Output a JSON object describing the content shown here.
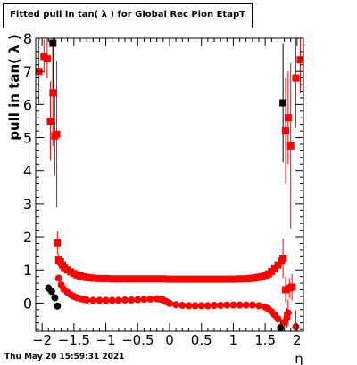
{
  "title": "Fitted pull in tan( λ ) for Global Rec Pion EtapT",
  "timestamp": "Thu May 20 15:59:31 2021",
  "chart_data": {
    "type": "scatter",
    "title": "Fitted pull in tan( λ ) for Global Rec Pion EtapT",
    "xlabel": "η",
    "ylabel": "pull in tan( λ )",
    "xlim": [
      -2.1,
      2.1
    ],
    "ylim": [
      -0.85,
      8.0
    ],
    "xticks": [
      "−2",
      "−1.5",
      "−1",
      "−0.5",
      "0",
      "0.5",
      "1",
      "1.5",
      "2"
    ],
    "yticks": [
      "0",
      "1",
      "2",
      "3",
      "4",
      "5",
      "6",
      "7",
      "8"
    ],
    "grid": false,
    "legend": "none",
    "colors": {
      "sigma": "#ff0000",
      "mean": "#000000",
      "frame": "#000000"
    },
    "series": [
      {
        "marker": "red-square",
        "color": "#ff0000",
        "points": [
          {
            "x": -2.05,
            "y": 7.0,
            "yerr": 1.0
          },
          {
            "x": -1.97,
            "y": 7.45,
            "yerr": 0.5
          },
          {
            "x": -1.92,
            "y": 7.38,
            "yerr": 0.6
          },
          {
            "x": -1.87,
            "y": 5.5,
            "yerr": 1.2
          },
          {
            "x": -1.83,
            "y": 6.35,
            "yerr": 1.6
          },
          {
            "x": -1.8,
            "y": 5.05,
            "yerr": 1.2
          },
          {
            "x": -1.77,
            "y": 5.1,
            "yerr": 2.2
          },
          {
            "x": -1.76,
            "y": 1.82,
            "yerr": 0.35
          },
          {
            "x": -1.74,
            "y": 1.3,
            "yerr": 0.2
          },
          {
            "x": -1.71,
            "y": 1.25,
            "yerr": 0.15
          },
          {
            "x": -1.68,
            "y": 1.15,
            "yerr": 0.12
          },
          {
            "x": -1.65,
            "y": 1.07,
            "yerr": 0.1
          },
          {
            "x": -1.6,
            "y": 1.0,
            "yerr": 0.08
          },
          {
            "x": -1.55,
            "y": 0.94,
            "yerr": 0.07
          },
          {
            "x": -1.5,
            "y": 0.89,
            "yerr": 0.06
          },
          {
            "x": -1.45,
            "y": 0.85,
            "yerr": 0.05
          },
          {
            "x": -1.4,
            "y": 0.82,
            "yerr": 0.05
          },
          {
            "x": -1.35,
            "y": 0.79,
            "yerr": 0.05
          },
          {
            "x": -1.3,
            "y": 0.77,
            "yerr": 0.05
          },
          {
            "x": -1.25,
            "y": 0.76,
            "yerr": 0.05
          },
          {
            "x": -1.2,
            "y": 0.75,
            "yerr": 0.05
          },
          {
            "x": -1.1,
            "y": 0.74,
            "yerr": 0.05
          },
          {
            "x": -1.0,
            "y": 0.74,
            "yerr": 0.05
          },
          {
            "x": -0.9,
            "y": 0.73,
            "yerr": 0.05
          },
          {
            "x": -0.8,
            "y": 0.73,
            "yerr": 0.05
          },
          {
            "x": -0.7,
            "y": 0.73,
            "yerr": 0.05
          },
          {
            "x": -0.6,
            "y": 0.73,
            "yerr": 0.05
          },
          {
            "x": -0.5,
            "y": 0.73,
            "yerr": 0.05
          },
          {
            "x": -0.4,
            "y": 0.73,
            "yerr": 0.05
          },
          {
            "x": -0.3,
            "y": 0.73,
            "yerr": 0.05
          },
          {
            "x": -0.2,
            "y": 0.73,
            "yerr": 0.05
          },
          {
            "x": -0.1,
            "y": 0.73,
            "yerr": 0.05
          },
          {
            "x": 0.0,
            "y": 0.72,
            "yerr": 0.05
          },
          {
            "x": 0.1,
            "y": 0.72,
            "yerr": 0.05
          },
          {
            "x": 0.2,
            "y": 0.72,
            "yerr": 0.05
          },
          {
            "x": 0.3,
            "y": 0.72,
            "yerr": 0.05
          },
          {
            "x": 0.4,
            "y": 0.72,
            "yerr": 0.05
          },
          {
            "x": 0.5,
            "y": 0.72,
            "yerr": 0.05
          },
          {
            "x": 0.6,
            "y": 0.72,
            "yerr": 0.05
          },
          {
            "x": 0.7,
            "y": 0.72,
            "yerr": 0.05
          },
          {
            "x": 0.8,
            "y": 0.72,
            "yerr": 0.05
          },
          {
            "x": 0.9,
            "y": 0.72,
            "yerr": 0.05
          },
          {
            "x": 1.0,
            "y": 0.72,
            "yerr": 0.05
          },
          {
            "x": 1.1,
            "y": 0.73,
            "yerr": 0.05
          },
          {
            "x": 1.2,
            "y": 0.73,
            "yerr": 0.05
          },
          {
            "x": 1.25,
            "y": 0.74,
            "yerr": 0.05
          },
          {
            "x": 1.3,
            "y": 0.75,
            "yerr": 0.05
          },
          {
            "x": 1.35,
            "y": 0.76,
            "yerr": 0.05
          },
          {
            "x": 1.4,
            "y": 0.78,
            "yerr": 0.05
          },
          {
            "x": 1.45,
            "y": 0.8,
            "yerr": 0.05
          },
          {
            "x": 1.5,
            "y": 0.84,
            "yerr": 0.06
          },
          {
            "x": 1.55,
            "y": 0.88,
            "yerr": 0.06
          },
          {
            "x": 1.6,
            "y": 0.95,
            "yerr": 0.07
          },
          {
            "x": 1.65,
            "y": 1.04,
            "yerr": 0.08
          },
          {
            "x": 1.7,
            "y": 1.15,
            "yerr": 0.1
          },
          {
            "x": 1.75,
            "y": 1.27,
            "yerr": 0.15
          },
          {
            "x": 1.78,
            "y": 1.35,
            "yerr": 0.6
          },
          {
            "x": 1.82,
            "y": 5.2,
            "yerr": 1.6
          },
          {
            "x": 1.86,
            "y": 5.6,
            "yerr": 1.4
          },
          {
            "x": 1.9,
            "y": 4.75,
            "yerr": 2.5
          },
          {
            "x": 1.82,
            "y": 0.4,
            "yerr": 0.4
          },
          {
            "x": 1.88,
            "y": 0.45,
            "yerr": 0.3
          },
          {
            "x": 1.92,
            "y": 0.48,
            "yerr": 0.4
          },
          {
            "x": 1.98,
            "y": 6.8,
            "yerr": 1.5
          },
          {
            "x": 2.05,
            "y": 7.35,
            "yerr": 1.0
          }
        ]
      },
      {
        "marker": "red-circle",
        "color": "#ff0000",
        "points": [
          {
            "x": -1.74,
            "y": 0.75,
            "yerr": 0.1
          },
          {
            "x": -1.7,
            "y": 0.55,
            "yerr": 0.08
          },
          {
            "x": -1.66,
            "y": 0.42,
            "yerr": 0.06
          },
          {
            "x": -1.6,
            "y": 0.32,
            "yerr": 0.05
          },
          {
            "x": -1.55,
            "y": 0.25,
            "yerr": 0.05
          },
          {
            "x": -1.5,
            "y": 0.2,
            "yerr": 0.04
          },
          {
            "x": -1.45,
            "y": 0.16,
            "yerr": 0.04
          },
          {
            "x": -1.4,
            "y": 0.13,
            "yerr": 0.04
          },
          {
            "x": -1.35,
            "y": 0.11,
            "yerr": 0.04
          },
          {
            "x": -1.3,
            "y": 0.09,
            "yerr": 0.04
          },
          {
            "x": -1.2,
            "y": 0.08,
            "yerr": 0.04
          },
          {
            "x": -1.1,
            "y": 0.08,
            "yerr": 0.04
          },
          {
            "x": -1.0,
            "y": 0.08,
            "yerr": 0.04
          },
          {
            "x": -0.9,
            "y": 0.08,
            "yerr": 0.04
          },
          {
            "x": -0.8,
            "y": 0.08,
            "yerr": 0.04
          },
          {
            "x": -0.7,
            "y": 0.09,
            "yerr": 0.04
          },
          {
            "x": -0.6,
            "y": 0.09,
            "yerr": 0.04
          },
          {
            "x": -0.5,
            "y": 0.1,
            "yerr": 0.04
          },
          {
            "x": -0.4,
            "y": 0.11,
            "yerr": 0.04
          },
          {
            "x": -0.3,
            "y": 0.12,
            "yerr": 0.04
          },
          {
            "x": -0.2,
            "y": 0.13,
            "yerr": 0.04
          },
          {
            "x": -0.15,
            "y": 0.12,
            "yerr": 0.04
          },
          {
            "x": -0.1,
            "y": 0.09,
            "yerr": 0.04
          },
          {
            "x": -0.05,
            "y": 0.04,
            "yerr": 0.04
          },
          {
            "x": 0.0,
            "y": -0.01,
            "yerr": 0.04
          },
          {
            "x": 0.1,
            "y": -0.05,
            "yerr": 0.04
          },
          {
            "x": 0.2,
            "y": -0.07,
            "yerr": 0.04
          },
          {
            "x": 0.3,
            "y": -0.08,
            "yerr": 0.04
          },
          {
            "x": 0.4,
            "y": -0.08,
            "yerr": 0.04
          },
          {
            "x": 0.5,
            "y": -0.08,
            "yerr": 0.04
          },
          {
            "x": 0.6,
            "y": -0.08,
            "yerr": 0.04
          },
          {
            "x": 0.7,
            "y": -0.07,
            "yerr": 0.04
          },
          {
            "x": 0.8,
            "y": -0.07,
            "yerr": 0.04
          },
          {
            "x": 0.9,
            "y": -0.06,
            "yerr": 0.04
          },
          {
            "x": 1.0,
            "y": -0.06,
            "yerr": 0.04
          },
          {
            "x": 1.1,
            "y": -0.06,
            "yerr": 0.04
          },
          {
            "x": 1.2,
            "y": -0.06,
            "yerr": 0.04
          },
          {
            "x": 1.3,
            "y": -0.06,
            "yerr": 0.04
          },
          {
            "x": 1.4,
            "y": -0.08,
            "yerr": 0.04
          },
          {
            "x": 1.5,
            "y": -0.12,
            "yerr": 0.05
          },
          {
            "x": 1.55,
            "y": -0.18,
            "yerr": 0.05
          },
          {
            "x": 1.6,
            "y": -0.26,
            "yerr": 0.06
          },
          {
            "x": 1.65,
            "y": -0.36,
            "yerr": 0.07
          },
          {
            "x": 1.7,
            "y": -0.48,
            "yerr": 0.1
          },
          {
            "x": 1.8,
            "y": -0.58,
            "yerr": 0.3
          },
          {
            "x": 1.84,
            "y": -0.45,
            "yerr": 0.3
          },
          {
            "x": 1.86,
            "y": -0.3,
            "yerr": 0.4
          },
          {
            "x": 1.98,
            "y": -0.72,
            "yerr": 0.5
          }
        ]
      },
      {
        "marker": "black-square",
        "color": "#000000",
        "points": [
          {
            "x": -1.83,
            "y": 7.85,
            "yerr": 1.5
          },
          {
            "x": 1.78,
            "y": 6.05,
            "yerr": 1.8
          }
        ]
      },
      {
        "marker": "black-circle",
        "color": "#000000",
        "points": [
          {
            "x": -1.9,
            "y": 0.45,
            "yerr": 0.12
          },
          {
            "x": -1.85,
            "y": 0.35,
            "yerr": 0.1
          },
          {
            "x": -1.8,
            "y": 0.16,
            "yerr": 0.1
          },
          {
            "x": -1.76,
            "y": -0.09,
            "yerr": 0.1
          },
          {
            "x": 1.74,
            "y": -0.75,
            "yerr": 0.25
          }
        ]
      }
    ]
  }
}
